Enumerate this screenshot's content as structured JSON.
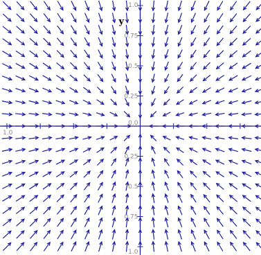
{
  "chart_data": {
    "type": "vector_field",
    "title": "",
    "xlabel": "",
    "ylabel": "y",
    "xlim": [
      -1.0,
      1.0
    ],
    "ylim": [
      -1.0,
      1.0
    ],
    "sink": [
      0.0,
      0.0
    ],
    "field": {
      "vx": "-x",
      "vy": "-y"
    },
    "grid_x": [
      -1.0,
      -0.9,
      -0.8,
      -0.7,
      -0.6,
      -0.5,
      -0.4,
      -0.3,
      -0.2,
      -0.1,
      0.0,
      0.1,
      0.2,
      0.3,
      0.4,
      0.5,
      0.6,
      0.7,
      0.8,
      0.9,
      1.0
    ],
    "grid_y": [
      1.0,
      0.9,
      0.8,
      0.7,
      0.6,
      0.5,
      0.4,
      0.3,
      0.2,
      0.1,
      0.0,
      -0.1,
      -0.2,
      -0.3,
      -0.4,
      -0.5,
      -0.6,
      -0.7,
      -0.8,
      -0.9,
      -1.0
    ],
    "x_ticks": [
      {
        "value": -1.0,
        "label": "1.0"
      },
      {
        "value": -0.75,
        "label": ""
      },
      {
        "value": -0.5,
        "label": ""
      },
      {
        "value": -0.25,
        "label": ""
      },
      {
        "value": 0.25,
        "label": ""
      },
      {
        "value": 0.5,
        "label": ""
      },
      {
        "value": 0.75,
        "label": ""
      }
    ],
    "y_ticks": [
      {
        "value": 1.0,
        "label": "1.0"
      },
      {
        "value": 0.75,
        "label": "0.75"
      },
      {
        "value": 0.5,
        "label": "0.5"
      },
      {
        "value": 0.25,
        "label": "0.25"
      },
      {
        "value": 0.0,
        "label": "0.0"
      },
      {
        "value": -0.25,
        "label": "0.25"
      },
      {
        "value": -0.5,
        "label": "0.5"
      },
      {
        "value": -0.75,
        "label": "0.75"
      },
      {
        "value": -1.0,
        "label": "1.0"
      }
    ],
    "colors": {
      "arrows": "#1f1f9f",
      "axes": "#1f1f9f",
      "tick_text": "#8a8a8a"
    }
  }
}
